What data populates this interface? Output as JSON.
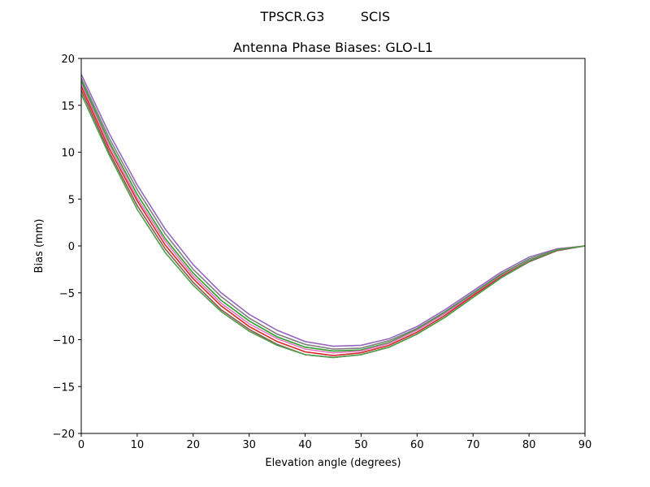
{
  "figure": {
    "suptitle_left": "TPSCR.G3",
    "suptitle_right": "SCIS"
  },
  "chart_data": {
    "type": "line",
    "title": "Antenna Phase Biases: GLO-L1",
    "xlabel": "Elevation angle (degrees)",
    "ylabel": "Bias (mm)",
    "xlim": [
      0,
      90
    ],
    "ylim": [
      -20,
      20
    ],
    "xticks": [
      0,
      10,
      20,
      30,
      40,
      50,
      60,
      70,
      80,
      90
    ],
    "yticks": [
      -20,
      -15,
      -10,
      -5,
      0,
      5,
      10,
      15,
      20
    ],
    "xtick_labels": [
      "0",
      "10",
      "20",
      "30",
      "40",
      "50",
      "60",
      "70",
      "80",
      "90"
    ],
    "ytick_labels": [
      "−20",
      "−15",
      "−10",
      "−5",
      "0",
      "5",
      "10",
      "15",
      "20"
    ],
    "grid": false,
    "legend": "none",
    "x": [
      0,
      5,
      10,
      15,
      20,
      25,
      30,
      35,
      40,
      45,
      50,
      55,
      60,
      65,
      70,
      75,
      80,
      85,
      90
    ],
    "series": [
      {
        "color": "#9467bd",
        "values": [
          18.3,
          12.0,
          6.5,
          1.8,
          -2.0,
          -5.0,
          -7.3,
          -9.0,
          -10.2,
          -10.7,
          -10.6,
          -9.9,
          -8.6,
          -6.8,
          -4.8,
          -2.8,
          -1.2,
          -0.3,
          0.0
        ]
      },
      {
        "color": "#7f7f7f",
        "values": [
          17.9,
          11.5,
          6.0,
          1.3,
          -2.5,
          -5.4,
          -7.7,
          -9.4,
          -10.5,
          -11.0,
          -10.9,
          -10.1,
          -8.8,
          -7.0,
          -5.0,
          -3.0,
          -1.4,
          -0.4,
          0.0
        ]
      },
      {
        "color": "#2ca02c",
        "values": [
          17.6,
          11.1,
          5.5,
          0.8,
          -2.9,
          -5.8,
          -8.0,
          -9.7,
          -10.8,
          -11.2,
          -11.1,
          -10.3,
          -8.9,
          -7.1,
          -5.1,
          -3.1,
          -1.4,
          -0.4,
          0.0
        ]
      },
      {
        "color": "#e377c2",
        "values": [
          17.3,
          10.8,
          5.1,
          0.5,
          -3.2,
          -6.1,
          -8.3,
          -9.9,
          -11.0,
          -11.4,
          -11.2,
          -10.4,
          -9.0,
          -7.2,
          -5.2,
          -3.2,
          -1.5,
          -0.4,
          0.0
        ]
      },
      {
        "color": "#d62728",
        "values": [
          17.0,
          10.4,
          4.8,
          0.1,
          -3.5,
          -6.4,
          -8.6,
          -10.2,
          -11.3,
          -11.7,
          -11.4,
          -10.6,
          -9.2,
          -7.4,
          -5.3,
          -3.3,
          -1.6,
          -0.4,
          0.0
        ]
      },
      {
        "color": "#8c564b",
        "values": [
          16.6,
          10.0,
          4.3,
          -0.3,
          -3.9,
          -6.8,
          -8.9,
          -10.5,
          -11.6,
          -11.9,
          -11.6,
          -10.8,
          -9.4,
          -7.6,
          -5.5,
          -3.4,
          -1.7,
          -0.5,
          0.0
        ]
      },
      {
        "color": "#4c9f4c",
        "values": [
          16.2,
          9.7,
          3.9,
          -0.7,
          -4.2,
          -7.0,
          -9.1,
          -10.6,
          -11.6,
          -11.9,
          -11.6,
          -10.8,
          -9.4,
          -7.6,
          -5.5,
          -3.4,
          -1.6,
          -0.4,
          0.0
        ]
      }
    ]
  }
}
